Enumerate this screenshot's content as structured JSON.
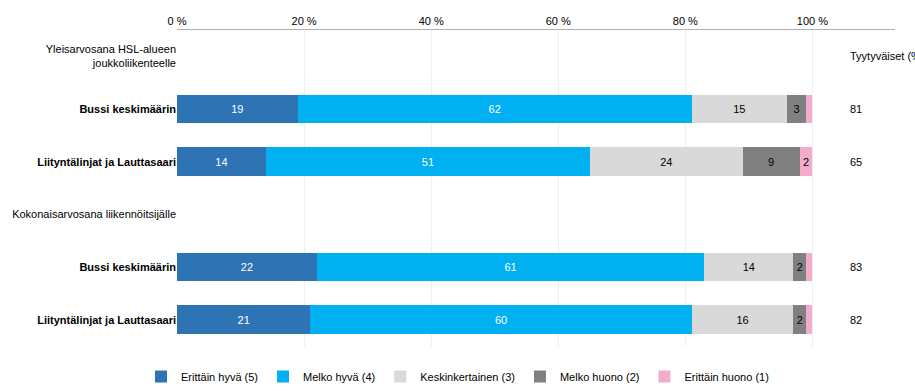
{
  "chart_data": {
    "type": "bar",
    "orientation": "horizontal",
    "stacked": true,
    "data_labels": true,
    "grid": true,
    "legend": "bottom",
    "categories": [
      "Yleisarvosana HSL-alueen\njoukkoliikenteelle",
      "Bussi keskimäärin",
      "Liityntälinjat ja Lauttasaari",
      "Kokonaisarvosana liikennöitsijälle",
      "Bussi keskimäärin",
      "Liityntälinjat ja Lauttasaari"
    ],
    "series": [
      {
        "name": "Erittäin hyvä (5)",
        "color": "#2e74b5",
        "values": [
          0,
          19,
          14,
          0,
          22,
          21
        ],
        "value_labels": [
          null,
          "19",
          "14",
          null,
          "22",
          "21"
        ]
      },
      {
        "name": "Melko hyvä (4)",
        "color": "#00b0f0",
        "values": [
          0,
          62,
          51,
          0,
          61,
          60
        ],
        "value_labels": [
          null,
          "62",
          "51",
          null,
          "61",
          "60"
        ]
      },
      {
        "name": "Keskinkertainen (3)",
        "color": "#d9d9d9",
        "values": [
          0,
          15,
          24,
          0,
          14,
          16
        ],
        "value_labels": [
          null,
          "15",
          "24",
          null,
          "14",
          "16"
        ]
      },
      {
        "name": "Melko huono (2)",
        "color": "#808080",
        "values": [
          0,
          3,
          9,
          0,
          2,
          2
        ],
        "value_labels": [
          null,
          "3",
          "9",
          null,
          "2",
          "2"
        ]
      },
      {
        "name": "Erittäin huono (1)",
        "color": "#f4accd",
        "values": [
          0,
          1,
          2,
          0,
          1,
          1
        ],
        "value_labels": [
          null,
          null,
          "2",
          null,
          null,
          null
        ]
      }
    ],
    "satisfied_header": "Tyytyväiset (%)",
    "satisfied": [
      null,
      81,
      65,
      null,
      83,
      82
    ],
    "xlim": [
      0,
      113
    ],
    "xticks": [
      {
        "value": 0,
        "label": "0 %"
      },
      {
        "value": 20,
        "label": "20 %"
      },
      {
        "value": 40,
        "label": "40 %"
      },
      {
        "value": 60,
        "label": "60 %"
      },
      {
        "value": 80,
        "label": "80 %"
      },
      {
        "value": 100,
        "label": "100 %"
      }
    ]
  }
}
